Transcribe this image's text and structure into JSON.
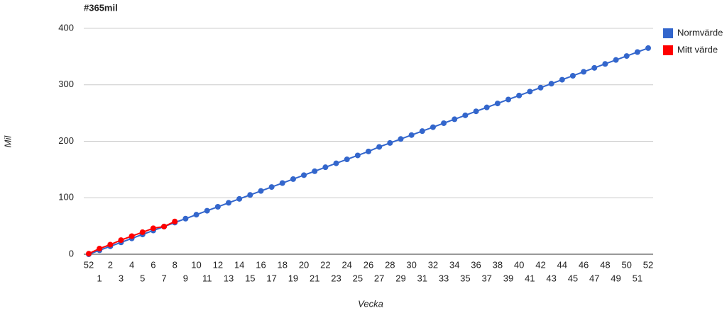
{
  "chart_data": {
    "type": "line",
    "title": "#365mil",
    "x_label": "Vecka",
    "y_label": "Mil",
    "categories": [
      "52",
      "1",
      "2",
      "3",
      "4",
      "5",
      "6",
      "7",
      "8",
      "9",
      "10",
      "11",
      "12",
      "13",
      "14",
      "15",
      "16",
      "17",
      "18",
      "19",
      "20",
      "21",
      "22",
      "23",
      "24",
      "25",
      "26",
      "27",
      "28",
      "29",
      "30",
      "31",
      "32",
      "33",
      "34",
      "35",
      "36",
      "37",
      "38",
      "39",
      "40",
      "41",
      "42",
      "43",
      "44",
      "45",
      "46",
      "47",
      "48",
      "49",
      "50",
      "51",
      "52"
    ],
    "series": [
      {
        "name": "Normvärde",
        "color": "#3366cc",
        "values": [
          0,
          7,
          14,
          21,
          28,
          35,
          42,
          49,
          56,
          63,
          70,
          77,
          84,
          91,
          98,
          105,
          112,
          119,
          126,
          133,
          140,
          147,
          154,
          161,
          168,
          175,
          182,
          190,
          197,
          204,
          211,
          218,
          225,
          232,
          239,
          246,
          253,
          260,
          267,
          274,
          281,
          288,
          295,
          302,
          309,
          316,
          323,
          330,
          337,
          344,
          351,
          358,
          365
        ]
      },
      {
        "name": "Mitt värde",
        "color": "#ff0000",
        "values": [
          1,
          10,
          17,
          25,
          32,
          39,
          46,
          49,
          58,
          null,
          null,
          null,
          null,
          null,
          null,
          null,
          null,
          null,
          null,
          null,
          null,
          null,
          null,
          null,
          null,
          null,
          null,
          null,
          null,
          null,
          null,
          null,
          null,
          null,
          null,
          null,
          null,
          null,
          null,
          null,
          null,
          null,
          null,
          null,
          null,
          null,
          null,
          null,
          null,
          null,
          null,
          null,
          null
        ]
      }
    ],
    "ylim": [
      0,
      400
    ],
    "yticks": [
      0,
      100,
      200,
      300,
      400
    ],
    "grid": true,
    "legend": "right"
  }
}
